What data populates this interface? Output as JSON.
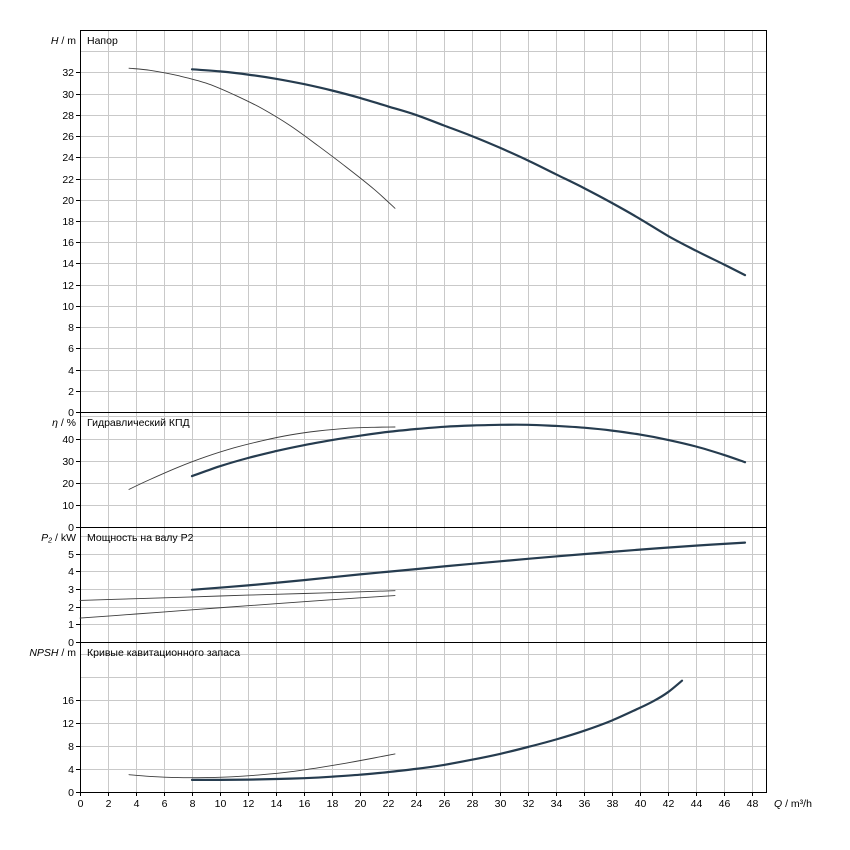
{
  "style": {
    "background": "#ffffff",
    "frame_color": "#000000",
    "grid_color": "#c9c9c9",
    "text_color": "#000000",
    "thick": {
      "color": "#263c4f",
      "width": 2.2
    },
    "thin": {
      "color": "#3d3d3d",
      "width": 0.9
    }
  },
  "x_axis": {
    "min": 0,
    "max": 49,
    "grid_step": 2,
    "ticks": [
      0,
      2,
      4,
      6,
      8,
      10,
      12,
      14,
      16,
      18,
      20,
      22,
      24,
      26,
      28,
      30,
      32,
      34,
      36,
      38,
      40,
      42,
      44,
      46,
      48
    ],
    "label": {
      "symbol": "Q",
      "unit": " / m³/h"
    }
  },
  "chart_data": [
    {
      "id": "head",
      "type": "line",
      "title": "Напор",
      "ylabel": {
        "symbol": "H",
        "unit": " / m"
      },
      "ylim": [
        0,
        36
      ],
      "grid_step": 2,
      "y_ticks": [
        0,
        2,
        4,
        6,
        8,
        10,
        12,
        14,
        16,
        18,
        20,
        22,
        24,
        26,
        28,
        30,
        32
      ],
      "series": [
        {
          "name": "head-curve",
          "style": "thick",
          "points": [
            [
              8,
              32.3
            ],
            [
              10,
              32.1
            ],
            [
              12,
              31.8
            ],
            [
              14,
              31.4
            ],
            [
              16,
              30.9
            ],
            [
              18,
              30.3
            ],
            [
              20,
              29.6
            ],
            [
              22,
              28.8
            ],
            [
              24,
              28.0
            ],
            [
              26,
              27.0
            ],
            [
              28,
              26.0
            ],
            [
              30,
              24.9
            ],
            [
              32,
              23.7
            ],
            [
              34,
              22.4
            ],
            [
              36,
              21.1
            ],
            [
              38,
              19.7
            ],
            [
              40,
              18.2
            ],
            [
              42,
              16.6
            ],
            [
              44,
              15.2
            ],
            [
              46,
              13.9
            ],
            [
              47.5,
              12.9
            ]
          ]
        },
        {
          "name": "head-curve-min",
          "style": "thin",
          "points": [
            [
              3.5,
              32.4
            ],
            [
              5,
              32.2
            ],
            [
              7,
              31.7
            ],
            [
              9,
              31.0
            ],
            [
              11,
              29.9
            ],
            [
              13,
              28.6
            ],
            [
              15,
              27.0
            ],
            [
              17,
              25.1
            ],
            [
              19,
              23.1
            ],
            [
              21,
              21.0
            ],
            [
              22.5,
              19.2
            ]
          ]
        }
      ]
    },
    {
      "id": "efficiency",
      "type": "line",
      "title": "Гидравлический КПД",
      "ylabel": {
        "symbol": "η",
        "unit": " / %"
      },
      "ylim": [
        0,
        52
      ],
      "grid_step": 10,
      "y_ticks": [
        0,
        10,
        20,
        30,
        40
      ],
      "series": [
        {
          "name": "efficiency-curve",
          "style": "thick",
          "points": [
            [
              8,
              23
            ],
            [
              10,
              27.5
            ],
            [
              12,
              31.2
            ],
            [
              14,
              34.3
            ],
            [
              16,
              37
            ],
            [
              18,
              39.3
            ],
            [
              20,
              41.3
            ],
            [
              22,
              43
            ],
            [
              24,
              44.3
            ],
            [
              26,
              45.3
            ],
            [
              28,
              45.9
            ],
            [
              30,
              46.2
            ],
            [
              32,
              46.2
            ],
            [
              34,
              45.7
            ],
            [
              36,
              44.9
            ],
            [
              38,
              43.6
            ],
            [
              40,
              41.8
            ],
            [
              42,
              39.4
            ],
            [
              44,
              36.4
            ],
            [
              46,
              32.6
            ],
            [
              47.5,
              29.3
            ]
          ]
        },
        {
          "name": "efficiency-curve-min",
          "style": "thin",
          "points": [
            [
              3.5,
              17
            ],
            [
              5,
              21.5
            ],
            [
              7,
              27
            ],
            [
              9,
              31.8
            ],
            [
              11,
              35.8
            ],
            [
              13,
              39
            ],
            [
              15,
              41.6
            ],
            [
              17,
              43.4
            ],
            [
              19,
              44.6
            ],
            [
              21,
              45.1
            ],
            [
              22.5,
              45.2
            ]
          ]
        }
      ]
    },
    {
      "id": "power",
      "type": "line",
      "title": "Мощность на валу P2",
      "ylabel": {
        "symbol": "P₂",
        "unit": " / kW"
      },
      "ylim": [
        0,
        6.5
      ],
      "grid_step": 1,
      "y_ticks": [
        0,
        1,
        2,
        3,
        4,
        5
      ],
      "series": [
        {
          "name": "power-curve",
          "style": "thick",
          "points": [
            [
              8,
              2.95
            ],
            [
              12,
              3.2
            ],
            [
              16,
              3.5
            ],
            [
              20,
              3.82
            ],
            [
              24,
              4.12
            ],
            [
              28,
              4.42
            ],
            [
              32,
              4.7
            ],
            [
              36,
              4.97
            ],
            [
              40,
              5.22
            ],
            [
              44,
              5.45
            ],
            [
              47.5,
              5.62
            ]
          ]
        },
        {
          "name": "power-curve-upper-min",
          "style": "thin",
          "points": [
            [
              0,
              2.35
            ],
            [
              4,
              2.45
            ],
            [
              8,
              2.55
            ],
            [
              12,
              2.65
            ],
            [
              16,
              2.74
            ],
            [
              20,
              2.84
            ],
            [
              22.5,
              2.9
            ]
          ]
        },
        {
          "name": "power-curve-lower-min",
          "style": "thin",
          "points": [
            [
              0,
              1.35
            ],
            [
              4,
              1.58
            ],
            [
              8,
              1.82
            ],
            [
              12,
              2.05
            ],
            [
              16,
              2.28
            ],
            [
              20,
              2.5
            ],
            [
              22.5,
              2.62
            ]
          ]
        }
      ]
    },
    {
      "id": "npsh",
      "type": "line",
      "title": "Кривые кавитационного запаса",
      "ylabel": {
        "symbol": "NPSH",
        "unit": " / m"
      },
      "ylim": [
        0,
        26
      ],
      "grid_step": 4,
      "y_ticks": [
        0,
        4,
        8,
        12,
        16
      ],
      "series": [
        {
          "name": "npsh-curve",
          "style": "thick",
          "points": [
            [
              8,
              2.1
            ],
            [
              10,
              2.1
            ],
            [
              12,
              2.15
            ],
            [
              14,
              2.25
            ],
            [
              16,
              2.4
            ],
            [
              18,
              2.65
            ],
            [
              20,
              3.0
            ],
            [
              22,
              3.45
            ],
            [
              24,
              4.0
            ],
            [
              26,
              4.7
            ],
            [
              28,
              5.6
            ],
            [
              30,
              6.6
            ],
            [
              32,
              7.8
            ],
            [
              34,
              9.1
            ],
            [
              36,
              10.6
            ],
            [
              38,
              12.4
            ],
            [
              40,
              14.6
            ],
            [
              41,
              15.8
            ],
            [
              42,
              17.3
            ],
            [
              43,
              19.3
            ]
          ]
        },
        {
          "name": "npsh-curve-min",
          "style": "thin",
          "points": [
            [
              3.5,
              3.0
            ],
            [
              5,
              2.7
            ],
            [
              7,
              2.5
            ],
            [
              9,
              2.5
            ],
            [
              11,
              2.65
            ],
            [
              13,
              3.0
            ],
            [
              15,
              3.5
            ],
            [
              17,
              4.2
            ],
            [
              19,
              5.0
            ],
            [
              21,
              5.9
            ],
            [
              22.5,
              6.6
            ]
          ]
        }
      ]
    }
  ]
}
